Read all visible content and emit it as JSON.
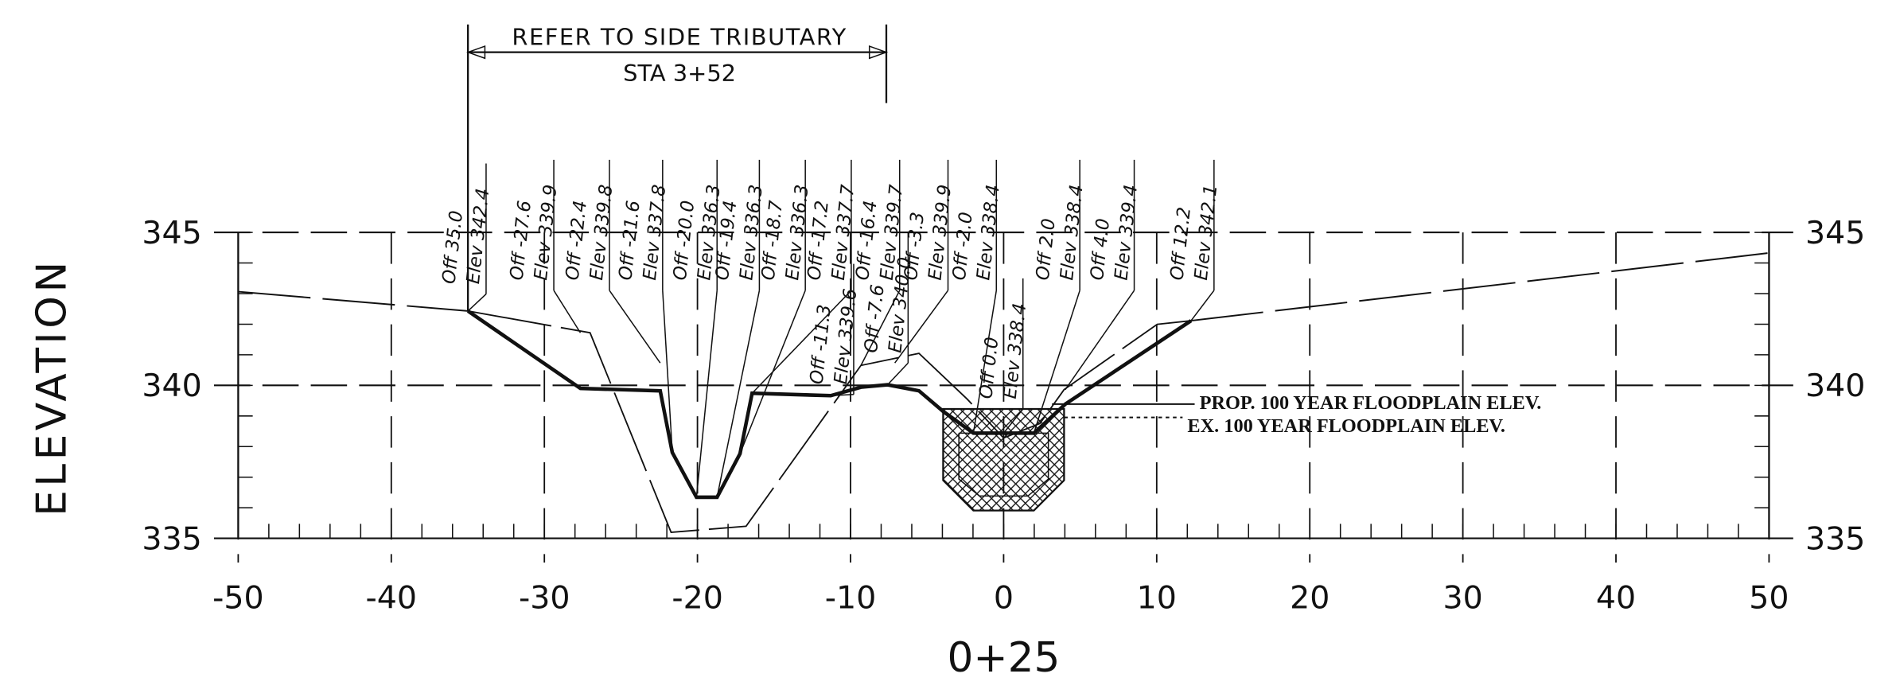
{
  "axis_title_y": "ELEVATION",
  "axis_title_x": "0+25",
  "xlim": [
    -50,
    50
  ],
  "ylim": [
    335,
    345
  ],
  "xticks": [
    -50,
    -40,
    -30,
    -20,
    -10,
    0,
    10,
    20,
    30,
    40,
    50
  ],
  "yticks": [
    335,
    340,
    345
  ],
  "header": {
    "note": "REFER TO SIDE TRIBUTARY",
    "station": "STA 3+52"
  },
  "labels": [
    {
      "offset": "Off 35.0",
      "elevation": "Elev 342.4"
    },
    {
      "offset": "Off -27.6",
      "elevation": "Elev 339.9"
    },
    {
      "offset": "Off -22.4",
      "elevation": "Elev 339.8"
    },
    {
      "offset": "Off -21.6",
      "elevation": "Elev 337.8"
    },
    {
      "offset": "Off -20.0",
      "elevation": "Elev 336.3"
    },
    {
      "offset": "Off -19.4",
      "elevation": "Elev 336.3"
    },
    {
      "offset": "Off -18.7",
      "elevation": "Elev 336.3"
    },
    {
      "offset": "Off -17.2",
      "elevation": "Elev 337.7"
    },
    {
      "offset": "Off -16.4",
      "elevation": "Elev 339.7"
    },
    {
      "offset": "Off -3.3",
      "elevation": "Elev 339.9"
    },
    {
      "offset": "Off -2.0",
      "elevation": "Elev 338.4"
    },
    {
      "offset": "Off 2.0",
      "elevation": "Elev 338.4"
    },
    {
      "offset": "Off 4.0",
      "elevation": "Elev 339.4"
    },
    {
      "offset": "Off 12.2",
      "elevation": "Elev 342.1"
    },
    {
      "offset": "Off -11.3",
      "elevation": "Elev 339.6"
    },
    {
      "offset": "Off -7.6",
      "elevation": "Elev 340.0"
    },
    {
      "offset": "Off 0.0",
      "elevation": "Elev 338.4"
    }
  ],
  "legend": {
    "proposed": "PROP. 100 YEAR FLOODPLAIN ELEV.",
    "existing": "EX. 100 YEAR FLOODPLAIN ELEV."
  }
}
